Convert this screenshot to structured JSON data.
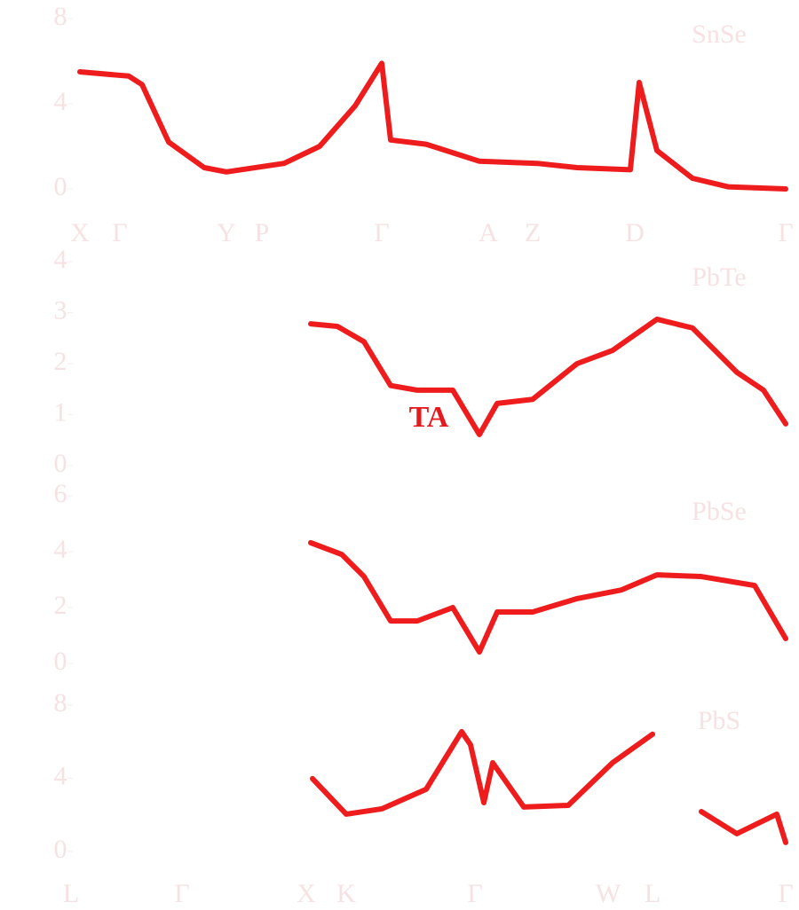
{
  "chart_data": [
    {
      "type": "line",
      "title": "SnSe",
      "color": "#ee1c1c",
      "xlim": [
        0,
        810
      ],
      "ylim": [
        0,
        8
      ],
      "yticks": [
        0,
        4,
        8
      ],
      "xticks": [
        {
          "value": 15,
          "label": "X"
        },
        {
          "value": 60,
          "label": "Γ"
        },
        {
          "value": 180,
          "label": "Y"
        },
        {
          "value": 220,
          "label": "P"
        },
        {
          "value": 355,
          "label": "Γ"
        },
        {
          "value": 475,
          "label": "A"
        },
        {
          "value": 525,
          "label": "Z"
        },
        {
          "value": 640,
          "label": "D"
        },
        {
          "value": 810,
          "label": "Γ"
        }
      ],
      "x": [
        15,
        70,
        85,
        115,
        155,
        180,
        245,
        285,
        325,
        355,
        365,
        405,
        465,
        530,
        575,
        635,
        645,
        665,
        705,
        745,
        810
      ],
      "values": [
        5.5,
        5.3,
        4.9,
        2.2,
        1.0,
        0.8,
        1.2,
        2.0,
        3.9,
        5.9,
        2.3,
        2.1,
        1.3,
        1.2,
        1.0,
        0.9,
        5.0,
        1.8,
        0.5,
        0.1,
        0
      ]
    },
    {
      "type": "line",
      "title": "PbTe",
      "color": "#ee1c1c",
      "annotation": "TA",
      "xlim": [
        0,
        810
      ],
      "ylim": [
        0,
        4
      ],
      "yticks": [
        0,
        1,
        2,
        3,
        4
      ],
      "x": [
        275,
        305,
        335,
        365,
        395,
        435,
        465,
        485,
        525,
        575,
        615,
        665,
        705,
        755,
        785,
        810
      ],
      "values": [
        2.78,
        2.73,
        2.43,
        1.57,
        1.48,
        1.48,
        0.61,
        1.22,
        1.3,
        2.0,
        2.26,
        2.87,
        2.7,
        1.83,
        1.48,
        0.82
      ]
    },
    {
      "type": "line",
      "title": "PbSe",
      "color": "#ee1c1c",
      "xlim": [
        0,
        810
      ],
      "ylim": [
        0,
        6
      ],
      "yticks": [
        0,
        2,
        4,
        6
      ],
      "x": [
        275,
        310,
        335,
        365,
        395,
        435,
        465,
        485,
        525,
        575,
        625,
        665,
        715,
        775,
        810
      ],
      "values": [
        4.32,
        3.9,
        3.11,
        1.52,
        1.52,
        2.0,
        0.41,
        1.84,
        1.84,
        2.32,
        2.63,
        3.17,
        3.11,
        2.79,
        0.89
      ]
    },
    {
      "type": "line",
      "title": "PbS",
      "color": "#ee1c1c",
      "xlim": [
        0,
        810
      ],
      "ylim": [
        0,
        8
      ],
      "yticks": [
        0,
        4,
        8
      ],
      "xticks": [
        {
          "value": 5,
          "label": "L"
        },
        {
          "value": 130,
          "label": "Γ"
        },
        {
          "value": 270,
          "label": "X"
        },
        {
          "value": 315,
          "label": "K"
        },
        {
          "value": 460,
          "label": "Γ"
        },
        {
          "value": 610,
          "label": "W"
        },
        {
          "value": 660,
          "label": "L"
        },
        {
          "value": 810,
          "label": "Γ"
        }
      ],
      "x": [
        277,
        315,
        355,
        405,
        445,
        455,
        470,
        480,
        515,
        565,
        615,
        660,
        675,
        715,
        755,
        800,
        810
      ],
      "values": [
        3.98,
        2.04,
        2.33,
        3.4,
        6.55,
        5.83,
        2.67,
        4.85,
        2.43,
        2.52,
        4.85,
        6.41,
        null,
        2.18,
        0.97,
        2.04,
        0.49
      ]
    }
  ]
}
